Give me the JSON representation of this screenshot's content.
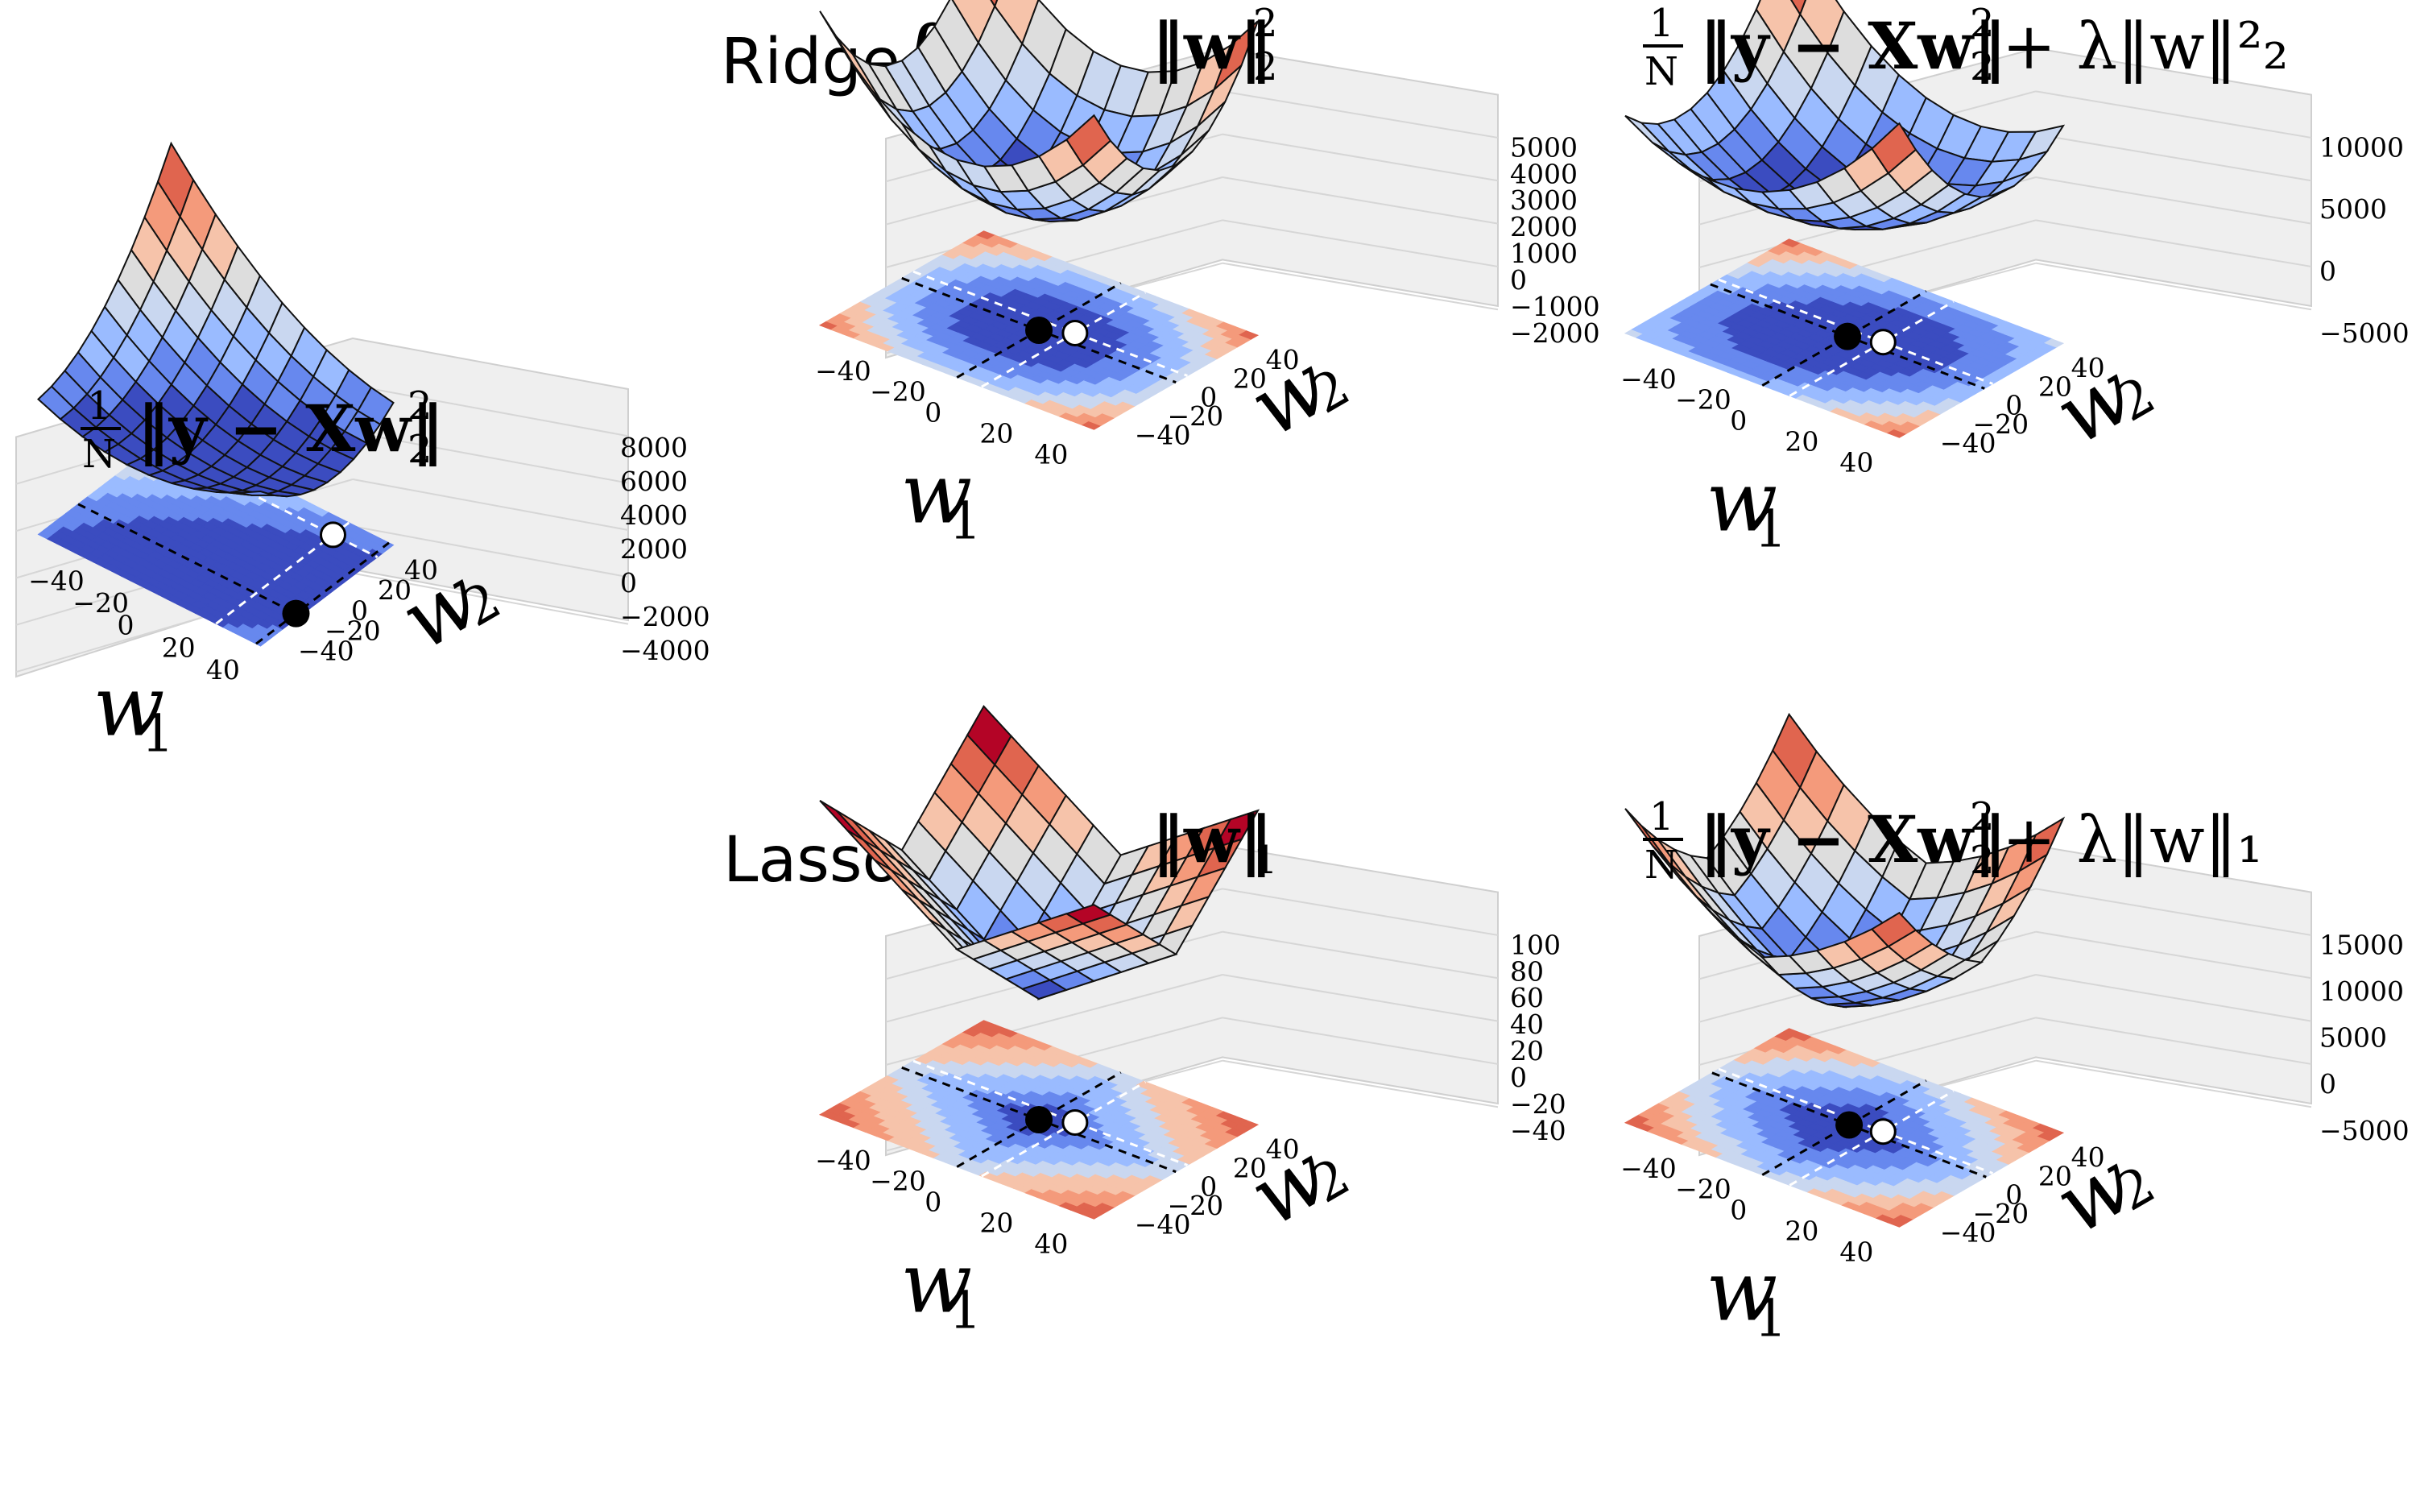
{
  "row_labels": [
    {
      "word": "Ridge",
      "symbol": "ℓ",
      "sub": "2"
    },
    {
      "word": "Lasso",
      "symbol": "ℓ",
      "sub": "1"
    }
  ],
  "colors": {
    "cmap": [
      "#3b4cc0",
      "#6788ee",
      "#9abbff",
      "#c9d7f0",
      "#dddddd",
      "#f6c3aa",
      "#f49a7b",
      "#e0654f",
      "#b40426"
    ],
    "pane": "#efefef",
    "grid": "#d6d6d6",
    "mesh": "#111111"
  },
  "chart_data": [
    {
      "id": "loss",
      "type": "surface3d",
      "title": {
        "pre": "1/N",
        "norm": "‖y − Xw‖",
        "sup": "2",
        "sub": "2",
        "tail": ""
      },
      "xlabel": "w1",
      "ylabel": "w2",
      "xticks": [
        "−40",
        "−20",
        "0",
        "20",
        "40"
      ],
      "yticks": [
        "−40",
        "−20",
        "0",
        "20",
        "40"
      ],
      "zticks": [
        "−4000",
        "−2000",
        "0",
        "2000",
        "4000",
        "6000",
        "8000"
      ],
      "xlim": [
        -50,
        50
      ],
      "ylim": [
        -50,
        50
      ],
      "zlim": [
        -4000,
        8000
      ],
      "surface": "least_squares",
      "floor_contours": "linear_bands",
      "minimum_black": [
        48,
        -20
      ],
      "minimum_white": [
        30,
        38
      ]
    },
    {
      "id": "ridge_penalty",
      "type": "surface3d",
      "title": {
        "pre": "",
        "norm": "‖w‖",
        "sup": "2",
        "sub": "2",
        "tail": ""
      },
      "xlabel": "w1",
      "ylabel": "w2",
      "xticks": [
        "−40",
        "−20",
        "0",
        "20",
        "40"
      ],
      "yticks": [
        "−40",
        "−20",
        "0",
        "20",
        "40"
      ],
      "zticks": [
        "−2000",
        "−1000",
        "0",
        "1000",
        "2000",
        "3000",
        "4000",
        "5000"
      ],
      "xlim": [
        -50,
        50
      ],
      "ylim": [
        -50,
        50
      ],
      "zlim": [
        -2000,
        5000
      ],
      "surface": "l2_squared",
      "floor_contours": "ellipses",
      "minimum_black": [
        0,
        0
      ],
      "minimum_white": [
        9,
        7
      ]
    },
    {
      "id": "ridge_total",
      "type": "surface3d",
      "title": {
        "pre": "1/N",
        "norm": "‖y − Xw‖",
        "sup": "2",
        "sub": "2",
        "tail": " + λ‖w‖²₂"
      },
      "xlabel": "w1",
      "ylabel": "w2",
      "xticks": [
        "−40",
        "−20",
        "0",
        "20",
        "40"
      ],
      "yticks": [
        "−40",
        "−20",
        "0",
        "20",
        "40"
      ],
      "zticks": [
        "−5000",
        "0",
        "5000",
        "10000"
      ],
      "xlim": [
        -50,
        50
      ],
      "ylim": [
        -50,
        50
      ],
      "zlim": [
        -5000,
        12000
      ],
      "surface": "ridge_objective",
      "floor_contours": "ellipses",
      "minimum_black": [
        0,
        2
      ],
      "minimum_white": [
        10,
        7
      ]
    },
    {
      "id": "lasso_penalty",
      "type": "surface3d",
      "title": {
        "pre": "",
        "norm": "‖w‖",
        "sup": "",
        "sub": "1",
        "tail": ""
      },
      "xlabel": "w1",
      "ylabel": "w2",
      "xticks": [
        "−40",
        "−20",
        "0",
        "20",
        "40"
      ],
      "yticks": [
        "−40",
        "−20",
        "0",
        "20",
        "40"
      ],
      "zticks": [
        "−40",
        "−20",
        "0",
        "20",
        "40",
        "60",
        "80",
        "100"
      ],
      "xlim": [
        -50,
        50
      ],
      "ylim": [
        -50,
        50
      ],
      "zlim": [
        -40,
        100
      ],
      "surface": "l1",
      "floor_contours": "diamonds",
      "minimum_black": [
        0,
        0
      ],
      "minimum_white": [
        9,
        7
      ]
    },
    {
      "id": "lasso_total",
      "type": "surface3d",
      "title": {
        "pre": "1/N",
        "norm": "‖y − Xw‖",
        "sup": "2",
        "sub": "2",
        "tail": " + λ‖w‖₁"
      },
      "xlabel": "w1",
      "ylabel": "w2",
      "xticks": [
        "−40",
        "−20",
        "0",
        "20",
        "40"
      ],
      "yticks": [
        "−40",
        "−20",
        "0",
        "20",
        "40"
      ],
      "zticks": [
        "−5000",
        "0",
        "5000",
        "10000",
        "15000"
      ],
      "xlim": [
        -50,
        50
      ],
      "ylim": [
        -50,
        50
      ],
      "zlim": [
        -7000,
        18000
      ],
      "surface": "lasso_objective",
      "floor_contours": "ellipses",
      "minimum_black": [
        0,
        3
      ],
      "minimum_white": [
        10,
        7
      ]
    }
  ]
}
